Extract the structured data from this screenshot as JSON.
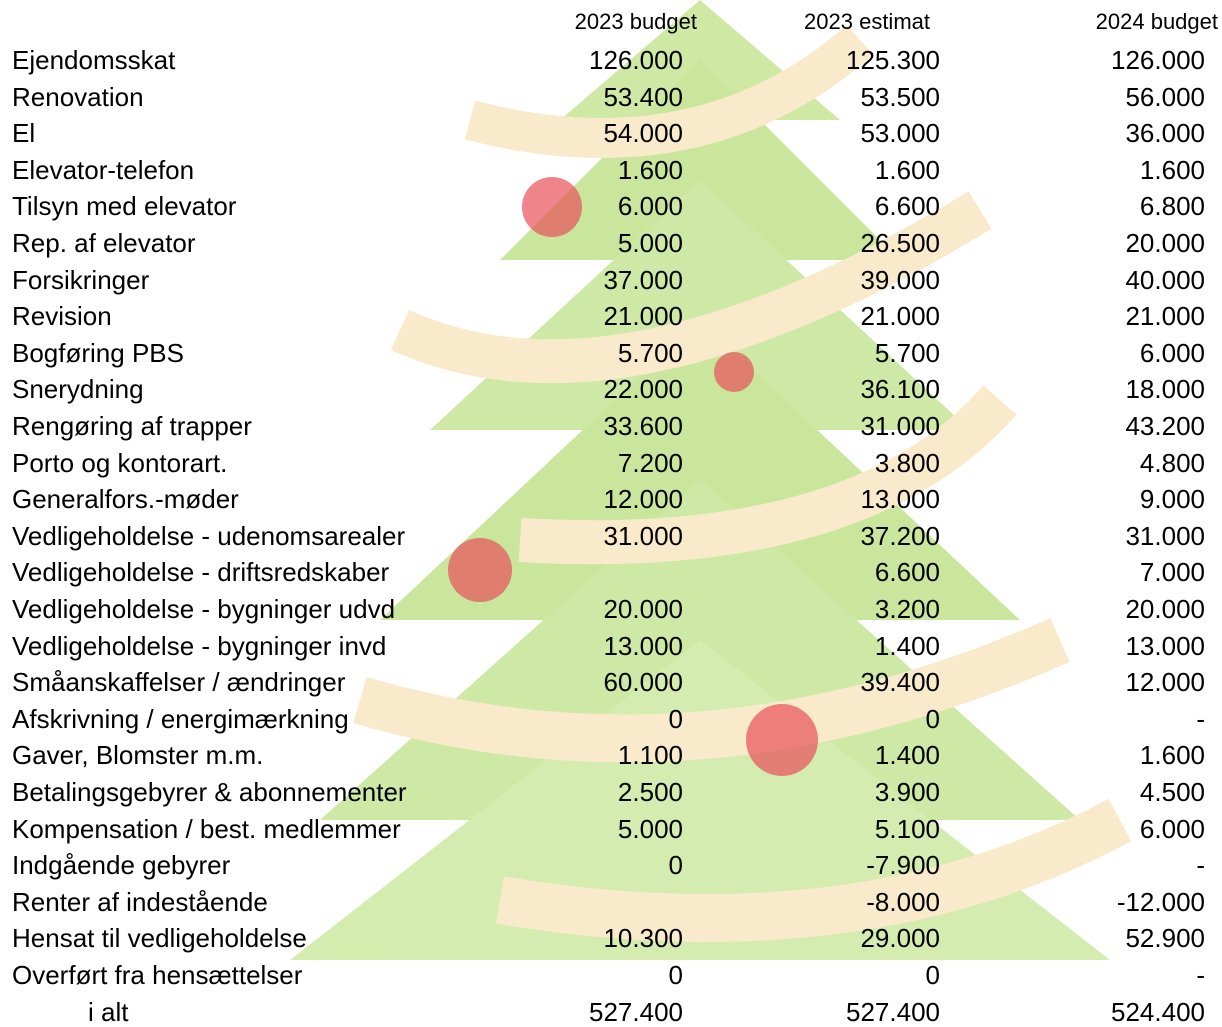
{
  "table": {
    "columns": [
      "2023 budget",
      "2023 estimat",
      "2024 budget"
    ],
    "rows": [
      [
        "Ejendomsskat",
        "126.000",
        "125.300",
        "126.000"
      ],
      [
        "Renovation",
        "53.400",
        "53.500",
        "56.000"
      ],
      [
        "El",
        "54.000",
        "53.000",
        "36.000"
      ],
      [
        "Elevator-telefon",
        "1.600",
        "1.600",
        "1.600"
      ],
      [
        "Tilsyn med elevator",
        "6.000",
        "6.600",
        "6.800"
      ],
      [
        "Rep. af elevator",
        "5.000",
        "26.500",
        "20.000"
      ],
      [
        "Forsikringer",
        "37.000",
        "39.000",
        "40.000"
      ],
      [
        "Revision",
        "21.000",
        "21.000",
        "21.000"
      ],
      [
        "Bogføring PBS",
        "5.700",
        "5.700",
        "6.000"
      ],
      [
        "Snerydning",
        "22.000",
        "36.100",
        "18.000"
      ],
      [
        "Rengøring af trapper",
        "33.600",
        "31.000",
        "43.200"
      ],
      [
        "Porto og kontorart.",
        "7.200",
        "3.800",
        "4.800"
      ],
      [
        "Generalfors.-møder",
        "12.000",
        "13.000",
        "9.000"
      ],
      [
        "Vedligeholdelse - udenomsarealer",
        "31.000",
        "37.200",
        "31.000"
      ],
      [
        "Vedligeholdelse - driftsredskaber",
        null,
        "6.600",
        "7.000"
      ],
      [
        "Vedligeholdelse - bygninger udvd",
        "20.000",
        "3.200",
        "20.000"
      ],
      [
        "Vedligeholdelse - bygninger invd",
        "13.000",
        "1.400",
        "13.000"
      ],
      [
        "Småanskaffelser / ændringer",
        "60.000",
        "39.400",
        "12.000"
      ],
      [
        "Afskrivning / energimærkning",
        "0",
        "0",
        "-"
      ],
      [
        "Gaver, Blomster m.m.",
        "1.100",
        "1.400",
        "1.600"
      ],
      [
        "Betalingsgebyrer & abonnementer",
        "2.500",
        "3.900",
        "4.500"
      ],
      [
        "Kompensation / best. medlemmer",
        "5.000",
        "5.100",
        "6.000"
      ],
      [
        "Indgående gebyrer",
        "0",
        "-7.900",
        "-"
      ],
      [
        "Renter af indestående",
        null,
        "-8.000",
        "-12.000"
      ],
      [
        "Hensat til vedligeholdelse",
        "10.300",
        "29.000",
        "52.900"
      ],
      [
        "Overført fra hensættelser",
        "0",
        "0",
        "-"
      ]
    ],
    "total": [
      "i alt",
      "527.400",
      "527.400",
      "524.400"
    ]
  }
}
